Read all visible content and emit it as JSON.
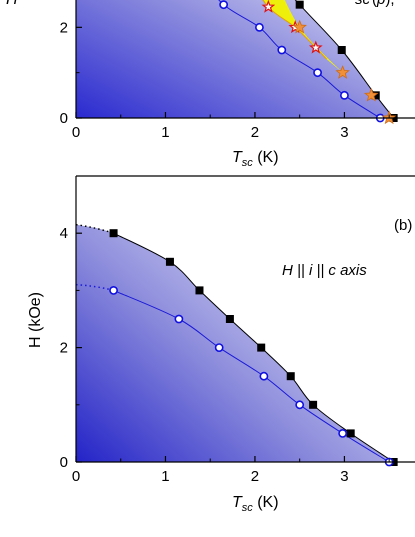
{
  "chart_data": [
    {
      "panel": "a",
      "type": "scatter",
      "xlabel_main": "T",
      "xlabel_sub": "sc",
      "xlabel_unit": " (K)",
      "ylabel_fragment": "H",
      "legend_fragment": "sc",
      "legend_fragment_rest": "(",
      "legend_fragment_p": "p",
      "legend_fragment_end": "),",
      "xlim": [
        0,
        3.8
      ],
      "ylim": [
        0,
        3.0
      ],
      "xticks": [
        "0",
        "1",
        "2",
        "3"
      ],
      "yticks": [
        "0",
        "2"
      ],
      "grid": false,
      "series": [
        {
          "marker": "filled-square",
          "x": [
            2.5,
            2.97,
            3.35,
            3.55
          ],
          "y": [
            2.5,
            1.5,
            0.5,
            0.0
          ]
        },
        {
          "marker": "open-circle",
          "x": [
            1.65,
            2.05,
            2.3,
            2.7,
            3.0,
            3.4
          ],
          "y": [
            2.5,
            2.0,
            1.5,
            1.0,
            0.5,
            0.0
          ]
        },
        {
          "marker": "open-star",
          "x": [
            2.15,
            2.45,
            2.68
          ],
          "y": [
            2.45,
            2.0,
            1.55
          ]
        },
        {
          "marker": "filled-star",
          "x": [
            2.5,
            2.98,
            3.3,
            3.5
          ],
          "y": [
            2.0,
            1.0,
            0.5,
            0.0
          ]
        }
      ]
    },
    {
      "panel": "b",
      "type": "scatter",
      "panel_label": "(b)",
      "annotation": "H || i || c axis",
      "xlabel_main": "T",
      "xlabel_sub": "sc",
      "xlabel_unit": " (K)",
      "ylabel": "H (kOe)",
      "xlim": [
        0,
        3.8
      ],
      "ylim": [
        0,
        5.0
      ],
      "xticks": [
        "0",
        "1",
        "2",
        "3"
      ],
      "yticks": [
        "0",
        "2",
        "4"
      ],
      "grid": false,
      "series": [
        {
          "marker": "filled-square",
          "x": [
            0.42,
            1.05,
            1.38,
            1.72,
            2.07,
            2.4,
            2.65,
            3.07,
            3.55
          ],
          "y": [
            4.0,
            3.5,
            3.0,
            2.5,
            2.0,
            1.5,
            1.0,
            0.5,
            0.0
          ]
        },
        {
          "marker": "open-circle",
          "x": [
            0.42,
            1.15,
            1.6,
            2.1,
            2.5,
            2.98,
            3.5
          ],
          "y": [
            3.0,
            2.5,
            2.0,
            1.5,
            1.0,
            0.5,
            0.0
          ]
        }
      ]
    }
  ]
}
